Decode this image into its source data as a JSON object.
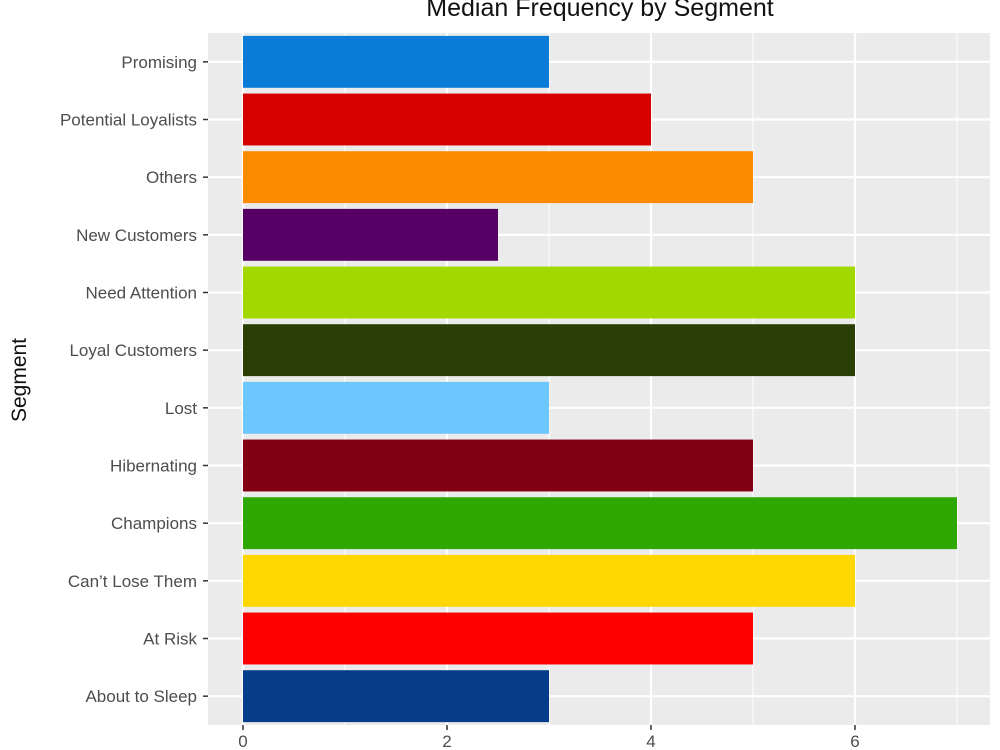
{
  "chart_data": {
    "type": "bar",
    "orientation": "horizontal",
    "title": "Median Frequency by Segment",
    "xlabel": "",
    "ylabel": "Segment",
    "xlim": [
      0,
      7
    ],
    "xticks": [
      0,
      2,
      4,
      6
    ],
    "grid": true,
    "legend": "none",
    "panel_background": "#ebebeb",
    "categories": [
      "Promising",
      "Potential Loyalists",
      "Others",
      "New Customers",
      "Need Attention",
      "Loyal Customers",
      "Lost",
      "Hibernating",
      "Champions",
      "Can’t Lose Them",
      "At Risk",
      "About to Sleep"
    ],
    "values": [
      3,
      4,
      5,
      2.5,
      6,
      6,
      3,
      5,
      7,
      6,
      5,
      3
    ],
    "colors": [
      "#0a7bd6",
      "#d60000",
      "#ff8c00",
      "#560066",
      "#a2d800",
      "#2a3f05",
      "#6ec6ff",
      "#820014",
      "#2ea800",
      "#ffd700",
      "#ff0000",
      "#063d8a"
    ]
  }
}
